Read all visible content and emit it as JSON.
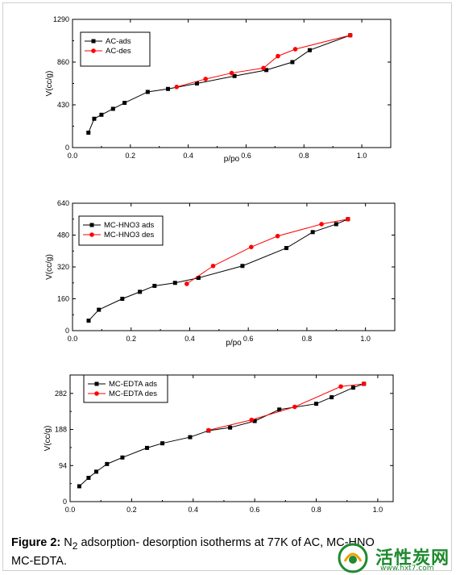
{
  "figure": {
    "caption_label": "Figure 2:",
    "caption_n": "N",
    "caption_sub": "2",
    "caption_rest": " adsorption- desorption isotherms at 77K of AC, MC-HNO",
    "caption_line2": "MC-EDTA."
  },
  "watermark": {
    "text": "活性炭网",
    "url": "www.hxt7.com"
  },
  "colors": {
    "ads": "#000000",
    "des": "#ff0000"
  },
  "chart_data": [
    {
      "type": "line",
      "xlabel": "p/po",
      "ylabel": "V(cc/g)",
      "xlim": [
        0,
        1.1
      ],
      "ylim": [
        0,
        1290
      ],
      "xticks": [
        0.0,
        0.2,
        0.4,
        0.6,
        0.8,
        1.0
      ],
      "xtick_labels": [
        "0.0",
        "0.2",
        "0.4",
        "0.6",
        "0.8",
        "1.0"
      ],
      "yticks": [
        0,
        430,
        860,
        1290
      ],
      "ytick_labels": [
        "0",
        "430",
        "860",
        "1290"
      ],
      "legend_position": "top-left",
      "series": [
        {
          "name": "AC-ads",
          "marker": "square",
          "color": "#000000",
          "x": [
            0.055,
            0.075,
            0.1,
            0.14,
            0.18,
            0.26,
            0.33,
            0.43,
            0.56,
            0.67,
            0.76,
            0.82,
            0.96
          ],
          "y": [
            150,
            290,
            330,
            390,
            450,
            560,
            590,
            645,
            720,
            780,
            860,
            980,
            1130
          ]
        },
        {
          "name": "AC-des",
          "marker": "circle",
          "color": "#ff0000",
          "x": [
            0.36,
            0.46,
            0.55,
            0.66,
            0.71,
            0.77,
            0.96
          ],
          "y": [
            610,
            690,
            750,
            800,
            920,
            990,
            1130
          ]
        }
      ]
    },
    {
      "type": "line",
      "xlabel": "p/po",
      "ylabel": "V(cc/g)",
      "xlim": [
        0,
        1.1
      ],
      "ylim": [
        0,
        640
      ],
      "xticks": [
        0.0,
        0.2,
        0.4,
        0.6,
        0.8,
        1.0
      ],
      "xtick_labels": [
        "0.0",
        "0.2",
        "0.4",
        "0.6",
        "0.8",
        "1.0"
      ],
      "yticks": [
        0,
        160,
        320,
        480,
        640
      ],
      "ytick_labels": [
        "0",
        "160",
        "320",
        "480",
        "640"
      ],
      "legend_position": "top-left",
      "series": [
        {
          "name": "MC-HNO3 ads",
          "marker": "square",
          "color": "#000000",
          "x": [
            0.055,
            0.09,
            0.17,
            0.23,
            0.28,
            0.35,
            0.43,
            0.58,
            0.73,
            0.82,
            0.9,
            0.94
          ],
          "y": [
            50,
            105,
            160,
            195,
            225,
            240,
            265,
            325,
            415,
            495,
            535,
            560
          ]
        },
        {
          "name": "MC-HNO3 des",
          "marker": "circle",
          "color": "#ff0000",
          "x": [
            0.39,
            0.48,
            0.61,
            0.7,
            0.85,
            0.94
          ],
          "y": [
            235,
            325,
            420,
            475,
            535,
            560
          ]
        }
      ]
    },
    {
      "type": "line",
      "xlabel": "",
      "ylabel": "V(cc/g)",
      "xlim": [
        0,
        1.05
      ],
      "ylim": [
        0,
        330
      ],
      "xticks": [
        0.0,
        0.2,
        0.4,
        0.6,
        0.8,
        1.0
      ],
      "xtick_labels": [
        "0.0",
        "0.2",
        "0.4",
        "0.6",
        "0.8",
        "1.0"
      ],
      "yticks": [
        0,
        94,
        188,
        282
      ],
      "ytick_labels": [
        "0",
        "94",
        "188",
        "282"
      ],
      "legend_position": "top-left",
      "series": [
        {
          "name": "MC-EDTA ads",
          "marker": "square",
          "color": "#000000",
          "x": [
            0.03,
            0.06,
            0.085,
            0.12,
            0.17,
            0.25,
            0.3,
            0.39,
            0.45,
            0.52,
            0.6,
            0.68,
            0.8,
            0.85,
            0.92,
            0.955
          ],
          "y": [
            40,
            62,
            78,
            98,
            115,
            140,
            152,
            168,
            185,
            193,
            210,
            240,
            255,
            272,
            297,
            307
          ]
        },
        {
          "name": "MC-EDTA des",
          "marker": "circle",
          "color": "#ff0000",
          "x": [
            0.45,
            0.59,
            0.73,
            0.88,
            0.955
          ],
          "y": [
            186,
            213,
            247,
            300,
            307
          ]
        }
      ]
    }
  ]
}
